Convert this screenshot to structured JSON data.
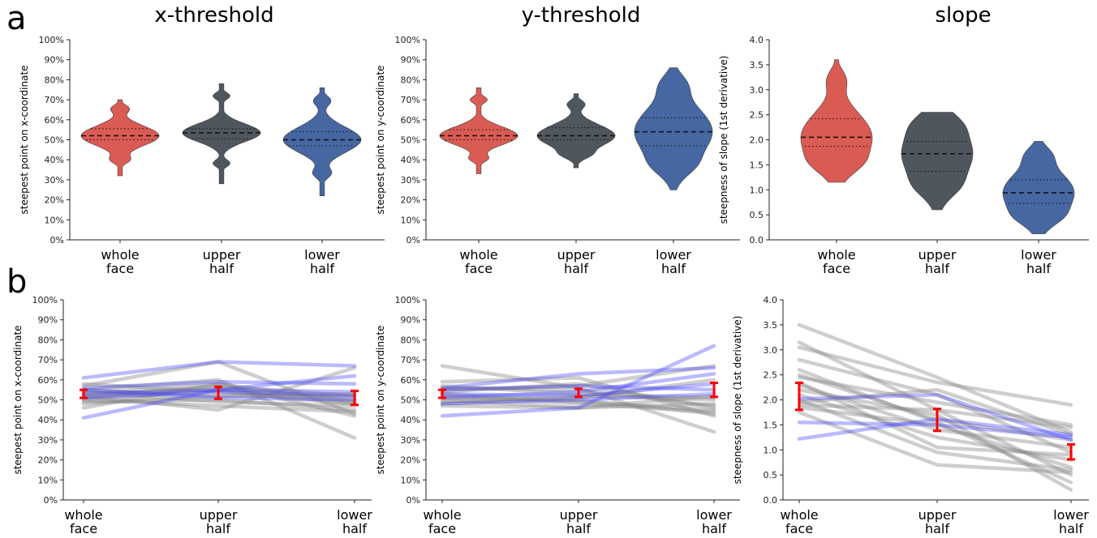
{
  "figure": {
    "panel_labels": [
      "a",
      "b"
    ],
    "column_titles": [
      "x-threshold",
      "y-threshold",
      "slope"
    ]
  },
  "colors": {
    "whole_face": "#d9534a",
    "upper_half": "#474e55",
    "lower_half": "#3d5f9e",
    "subject_gray": "#8a8a8a",
    "subject_blue": "#3a3aff",
    "mean_marker": "#ff0000"
  },
  "chart_data": [
    {
      "id": "a1",
      "type": "violin",
      "ylabel": "steepest point on x-coordinate",
      "ylim": [
        0,
        100
      ],
      "yticks": [
        "0%",
        "10%",
        "20%",
        "30%",
        "40%",
        "50%",
        "60%",
        "70%",
        "80%",
        "90%",
        "100%"
      ],
      "categories": [
        [
          "whole",
          "face"
        ],
        [
          "upper",
          "half"
        ],
        [
          "lower",
          "half"
        ]
      ],
      "violins": [
        {
          "median": 52,
          "q1": 50,
          "q3": 55.5,
          "min": 32,
          "max": 70
        },
        {
          "median": 53.5,
          "q1": 50.5,
          "q3": 55.5,
          "min": 28,
          "max": 78
        },
        {
          "median": 50,
          "q1": 47,
          "q3": 54,
          "min": 22,
          "max": 76
        }
      ]
    },
    {
      "id": "a2",
      "type": "violin",
      "ylabel": "steepest point on y-coordinate",
      "ylim": [
        0,
        100
      ],
      "yticks": [
        "0%",
        "10%",
        "20%",
        "30%",
        "40%",
        "50%",
        "60%",
        "70%",
        "80%",
        "90%",
        "100%"
      ],
      "categories": [
        [
          "whole",
          "face"
        ],
        [
          "upper",
          "half"
        ],
        [
          "lower",
          "half"
        ]
      ],
      "violins": [
        {
          "median": 52,
          "q1": 50,
          "q3": 55,
          "min": 33,
          "max": 76
        },
        {
          "median": 52,
          "q1": 50,
          "q3": 56,
          "min": 36,
          "max": 73
        },
        {
          "median": 54,
          "q1": 47,
          "q3": 61,
          "min": 25,
          "max": 86
        }
      ]
    },
    {
      "id": "a3",
      "type": "violin",
      "ylabel": "steepness of slope (1st derivative)",
      "ylim": [
        0,
        4
      ],
      "yticks": [
        "0.0",
        "0.5",
        "1.0",
        "1.5",
        "2.0",
        "2.5",
        "3.0",
        "3.5",
        "4.0"
      ],
      "categories": [
        [
          "whole",
          "face"
        ],
        [
          "upper",
          "half"
        ],
        [
          "lower",
          "half"
        ]
      ],
      "violins": [
        {
          "median": 2.05,
          "q1": 1.87,
          "q3": 2.42,
          "min": 1.15,
          "max": 3.6
        },
        {
          "median": 1.72,
          "q1": 1.37,
          "q3": 1.97,
          "min": 0.6,
          "max": 2.55
        },
        {
          "median": 0.94,
          "q1": 0.73,
          "q3": 1.2,
          "min": 0.12,
          "max": 1.97
        }
      ]
    },
    {
      "id": "b1",
      "type": "line",
      "ylabel": "steepest point on x-coordinate",
      "ylim": [
        0,
        100
      ],
      "yticks": [
        "0%",
        "10%",
        "20%",
        "30%",
        "40%",
        "50%",
        "60%",
        "70%",
        "80%",
        "90%",
        "100%"
      ],
      "categories": [
        [
          "whole",
          "face"
        ],
        [
          "upper",
          "half"
        ],
        [
          "lower",
          "half"
        ]
      ],
      "gray_subjects": [
        [
          57,
          69,
          43
        ],
        [
          55,
          60,
          31
        ],
        [
          52,
          45,
          66
        ],
        [
          50,
          55,
          48
        ],
        [
          48,
          52,
          52
        ],
        [
          46,
          58,
          42
        ],
        [
          54,
          49,
          47
        ],
        [
          52,
          56,
          50
        ],
        [
          50,
          47,
          44
        ],
        [
          53,
          58,
          49
        ],
        [
          55,
          52,
          53
        ],
        [
          49,
          50,
          45
        ],
        [
          51,
          57,
          52
        ],
        [
          58,
          54,
          48
        ]
      ],
      "blue_subjects": [
        [
          61,
          69,
          67
        ],
        [
          41,
          55,
          62
        ],
        [
          56,
          59,
          58
        ],
        [
          53,
          55,
          54
        ],
        [
          51,
          54,
          52
        ],
        [
          55,
          51,
          50
        ]
      ],
      "mean": [
        53,
        53.5,
        51
      ],
      "err": [
        2,
        3,
        3.5
      ]
    },
    {
      "id": "b2",
      "type": "line",
      "ylabel": "steepest point on y-coordinate",
      "ylim": [
        0,
        100
      ],
      "yticks": [
        "0%",
        "10%",
        "20%",
        "30%",
        "40%",
        "50%",
        "60%",
        "70%",
        "80%",
        "90%",
        "100%"
      ],
      "categories": [
        [
          "whole",
          "face"
        ],
        [
          "upper",
          "half"
        ],
        [
          "lower",
          "half"
        ]
      ],
      "gray_subjects": [
        [
          67,
          56,
          34
        ],
        [
          59,
          61,
          42
        ],
        [
          56,
          55,
          47
        ],
        [
          52,
          48,
          44
        ],
        [
          50,
          46,
          52
        ],
        [
          48,
          51,
          60
        ],
        [
          54,
          58,
          46
        ],
        [
          51,
          50,
          43
        ],
        [
          47,
          46,
          48
        ],
        [
          57,
          53,
          51
        ],
        [
          55,
          57,
          67
        ],
        [
          49,
          52,
          50
        ],
        [
          53,
          49,
          45
        ]
      ],
      "blue_subjects": [
        [
          42,
          46,
          77
        ],
        [
          56,
          63,
          66
        ],
        [
          51,
          54,
          63
        ],
        [
          53,
          52,
          58
        ],
        [
          55,
          57,
          55
        ],
        [
          48,
          50,
          53
        ]
      ],
      "mean": [
        53,
        53.5,
        55
      ],
      "err": [
        2,
        2,
        3.5
      ]
    },
    {
      "id": "b3",
      "type": "line",
      "ylabel": "steepness of slope (1st derivative)",
      "ylim": [
        0,
        4
      ],
      "yticks": [
        "0.0",
        "0.5",
        "1.0",
        "1.5",
        "2.0",
        "2.5",
        "3.0",
        "3.5",
        "4.0"
      ],
      "categories": [
        [
          "whole",
          "face"
        ],
        [
          "upper",
          "half"
        ],
        [
          "lower",
          "half"
        ]
      ],
      "gray_subjects": [
        [
          3.5,
          2.45,
          1.35
        ],
        [
          3.15,
          1.8,
          0.5
        ],
        [
          3.05,
          2.35,
          1.9
        ],
        [
          2.8,
          2.1,
          0.95
        ],
        [
          2.6,
          1.55,
          0.35
        ],
        [
          2.45,
          1.95,
          1.5
        ],
        [
          2.3,
          1.4,
          1.05
        ],
        [
          2.2,
          1.7,
          0.2
        ],
        [
          2.1,
          1.25,
          0.8
        ],
        [
          2.0,
          0.95,
          0.6
        ],
        [
          1.9,
          1.8,
          1.45
        ],
        [
          1.85,
          1.5,
          0.65
        ],
        [
          1.75,
          0.7,
          0.55
        ],
        [
          2.5,
          1.6,
          1.2
        ],
        [
          1.95,
          2.2,
          1.3
        ],
        [
          2.35,
          1.05,
          0.9
        ]
      ],
      "blue_subjects": [
        [
          1.22,
          1.62,
          1.3
        ],
        [
          2.02,
          2.1,
          1.2
        ],
        [
          1.55,
          1.5,
          1.25
        ]
      ],
      "mean": [
        2.07,
        1.6,
        0.96
      ],
      "err": [
        0.27,
        0.22,
        0.15
      ]
    }
  ]
}
